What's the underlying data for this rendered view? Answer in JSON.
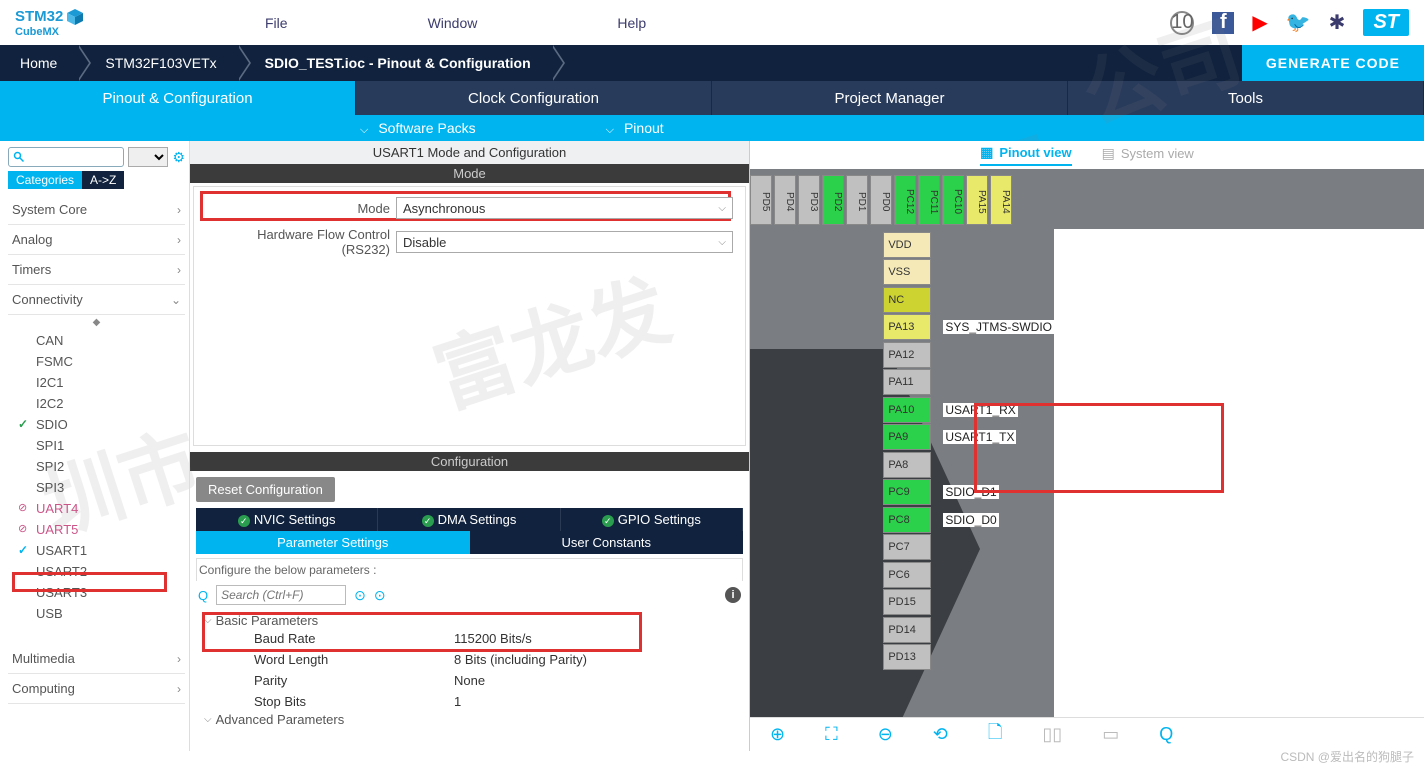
{
  "logo": {
    "line1": "STM32",
    "line2": "CubeMX"
  },
  "topmenu": {
    "file": "File",
    "window": "Window",
    "help": "Help"
  },
  "navbar": {
    "home": "Home",
    "chip": "STM32F103VETx",
    "project": "SDIO_TEST.ioc - Pinout & Configuration",
    "generate": "GENERATE CODE"
  },
  "tabs": {
    "t1": "Pinout & Configuration",
    "t2": "Clock Configuration",
    "t3": "Project Manager",
    "t4": "Tools"
  },
  "subbar": {
    "packs": "Software Packs",
    "pinout": "Pinout"
  },
  "sidebar": {
    "catToggle": {
      "on": "Categories",
      "off": "A->Z"
    },
    "cats": {
      "syscore": "System Core",
      "analog": "Analog",
      "timers": "Timers",
      "conn": "Connectivity",
      "mm": "Multimedia",
      "comp": "Computing"
    },
    "conn_items": {
      "can": "CAN",
      "fsmc": "FSMC",
      "i2c1": "I2C1",
      "i2c2": "I2C2",
      "sdio": "SDIO",
      "spi1": "SPI1",
      "spi2": "SPI2",
      "spi3": "SPI3",
      "uart4": "UART4",
      "uart5": "UART5",
      "usart1": "USART1",
      "usart2": "USART2",
      "usart3": "USART3",
      "usb": "USB"
    }
  },
  "center": {
    "title": "USART1 Mode and Configuration",
    "mode_hdr": "Mode",
    "mode_label": "Mode",
    "mode_value": "Asynchronous",
    "hw_label": "Hardware Flow Control (RS232)",
    "hw_value": "Disable",
    "cfg_hdr": "Configuration",
    "reset": "Reset Configuration",
    "tabs1": {
      "nvic": "NVIC Settings",
      "dma": "DMA Settings",
      "gpio": "GPIO Settings"
    },
    "tabs2": {
      "param": "Parameter Settings",
      "user": "User Constants"
    },
    "cfg_msg": "Configure the below parameters :",
    "search_ph": "Search (Ctrl+F)",
    "grp1": "Basic Parameters",
    "baud_k": "Baud Rate",
    "baud_v": "115200 Bits/s",
    "wl_k": "Word Length",
    "wl_v": "8 Bits (including Parity)",
    "par_k": "Parity",
    "par_v": "None",
    "sb_k": "Stop Bits",
    "sb_v": "1",
    "grp2": "Advanced Parameters"
  },
  "right": {
    "pv": "Pinout view",
    "sv": "System view",
    "top_pins": [
      "PD5",
      "PD4",
      "PD3",
      "PD2",
      "PD1",
      "PD0",
      "PC12",
      "PC11",
      "PC10",
      "PA15",
      "PA14"
    ],
    "top_pin_colors": [
      "#c0c0c0",
      "#c0c0c0",
      "#c0c0c0",
      "#2bd14a",
      "#c0c0c0",
      "#c0c0c0",
      "#2bd14a",
      "#2bd14a",
      "#2bd14a",
      "#e8e86a",
      "#e8e86a"
    ],
    "rpins": [
      {
        "n": "VDD",
        "c": "#f5e9b8",
        "l": ""
      },
      {
        "n": "VSS",
        "c": "#f5e9b8",
        "l": ""
      },
      {
        "n": "NC",
        "c": "#cdd432",
        "l": ""
      },
      {
        "n": "PA13",
        "c": "#e8e86a",
        "l": "SYS_JTMS-SWDIO"
      },
      {
        "n": "PA12",
        "c": "#c0c0c0",
        "l": ""
      },
      {
        "n": "PA11",
        "c": "#c0c0c0",
        "l": ""
      },
      {
        "n": "PA10",
        "c": "#2bd14a",
        "l": "USART1_RX"
      },
      {
        "n": "PA9",
        "c": "#2bd14a",
        "l": "USART1_TX"
      },
      {
        "n": "PA8",
        "c": "#c0c0c0",
        "l": ""
      },
      {
        "n": "PC9",
        "c": "#2bd14a",
        "l": "SDIO_D1"
      },
      {
        "n": "PC8",
        "c": "#2bd14a",
        "l": "SDIO_D0"
      },
      {
        "n": "PC7",
        "c": "#c0c0c0",
        "l": ""
      },
      {
        "n": "PC6",
        "c": "#c0c0c0",
        "l": ""
      },
      {
        "n": "PD15",
        "c": "#c0c0c0",
        "l": ""
      },
      {
        "n": "PD14",
        "c": "#c0c0c0",
        "l": ""
      },
      {
        "n": "PD13",
        "c": "#c0c0c0",
        "l": ""
      }
    ]
  },
  "csdn": "CSDN @爱出名的狗腿子",
  "colors": {
    "accent": "#00b4f0",
    "navy": "#10223d",
    "red": "#e03131",
    "green": "#2bd14a"
  }
}
